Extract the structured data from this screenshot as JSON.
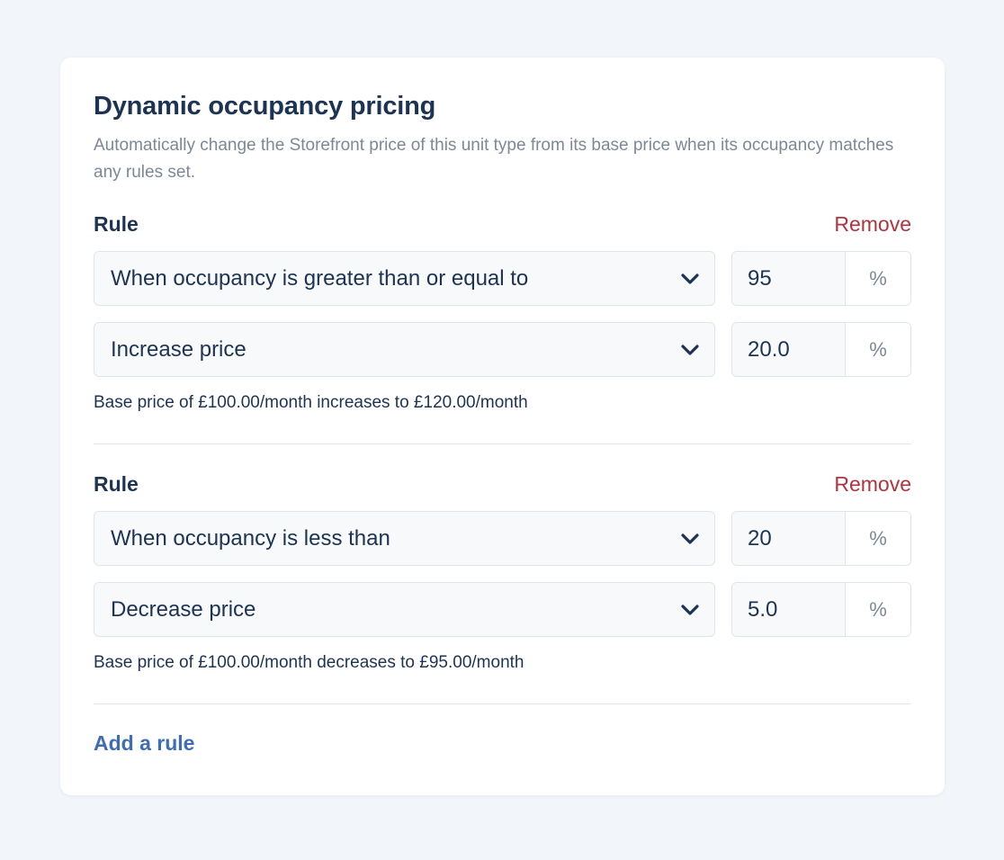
{
  "card": {
    "title": "Dynamic occupancy pricing",
    "description": "Automatically change the Storefront price of this unit type from its base price when its occupancy matches any rules set."
  },
  "rules": [
    {
      "label": "Rule",
      "remove_label": "Remove",
      "condition": "When occupancy is greater than or equal to",
      "condition_value": "95",
      "condition_unit": "%",
      "action": "Increase price",
      "action_value": "20.0",
      "action_unit": "%",
      "summary": "Base price of £100.00/month increases to £120.00/month"
    },
    {
      "label": "Rule",
      "remove_label": "Remove",
      "condition": "When occupancy is less than",
      "condition_value": "20",
      "condition_unit": "%",
      "action": "Decrease price",
      "action_value": "5.0",
      "action_unit": "%",
      "summary": "Base price of £100.00/month decreases to £95.00/month"
    }
  ],
  "add_rule_label": "Add a rule",
  "icons": {
    "select_chevron": "chevron-down-icon"
  },
  "colors": {
    "page_background": "#f2f5f9",
    "heading": "#1d3354",
    "muted_text": "#7d8897",
    "remove_link": "#b0343f",
    "add_link": "#3d6db5"
  }
}
